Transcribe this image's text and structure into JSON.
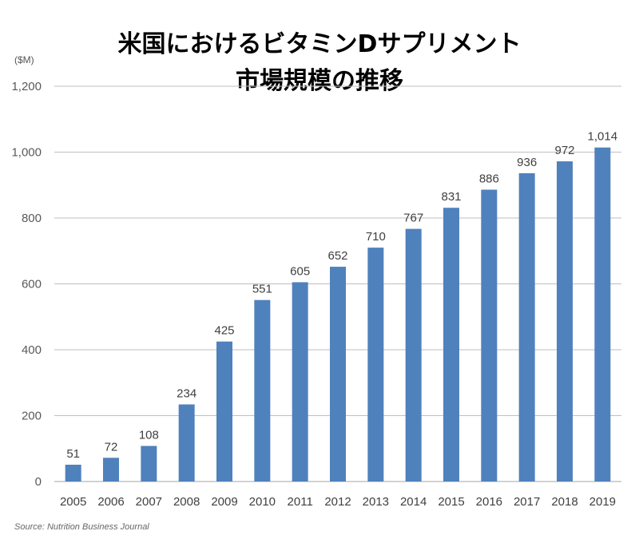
{
  "chart_data": {
    "type": "bar",
    "title_line1": "米国におけるビタミンDサプリメント",
    "title_line2": "市場規模の推移",
    "unit_label": "($M)",
    "source": "Source: Nutrition Business Journal",
    "categories": [
      "2005",
      "2006",
      "2007",
      "2008",
      "2009",
      "2010",
      "2011",
      "2012",
      "2013",
      "2014",
      "2015",
      "2016",
      "2017",
      "2018",
      "2019"
    ],
    "values": [
      51,
      72,
      108,
      234,
      425,
      551,
      605,
      652,
      710,
      767,
      831,
      886,
      936,
      972,
      1014
    ],
    "value_labels": [
      "51",
      "72",
      "108",
      "234",
      "425",
      "551",
      "605",
      "652",
      "710",
      "767",
      "831",
      "886",
      "936",
      "972",
      "1,014"
    ],
    "ylim": [
      0,
      1200
    ],
    "yticks": [
      0,
      200,
      400,
      600,
      800,
      1000,
      1200
    ],
    "ytick_labels": [
      "0",
      "200",
      "400",
      "600",
      "800",
      "1,000",
      "1,200"
    ],
    "grid": true,
    "bar_color": "#4f81bd",
    "grid_color": "#bfbfbf"
  }
}
